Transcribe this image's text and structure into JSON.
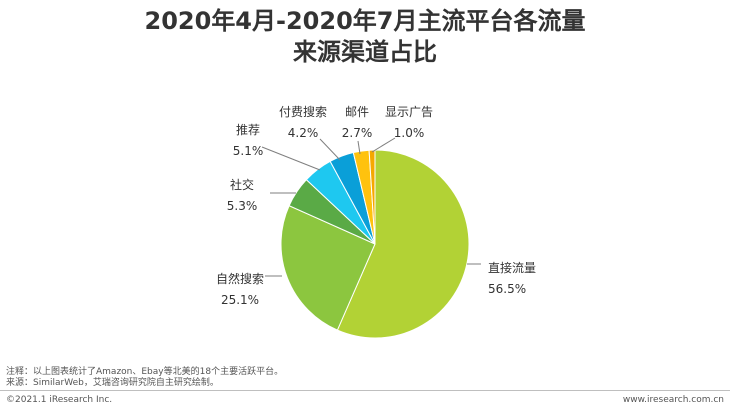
{
  "page": {
    "title_line1": "2020年4月-2020年7月主流平台各流量",
    "title_line2": "来源渠道占比",
    "note1": "注释：以上图表统计了Amazon、Ebay等北美的18个主要活跃平台。",
    "note2": "来源：SimilarWeb，艾瑞咨询研究院自主研究绘制。",
    "footer_left": "©2021.1 iResearch Inc.",
    "footer_right": "www.iresearch.com.cn"
  },
  "chart_data": {
    "type": "pie",
    "title": "2020年4月-2020年7月主流平台各流量来源渠道占比",
    "slices": [
      {
        "label": "直接流量",
        "value": 56.5,
        "value_label": "56.5%",
        "color": "#b2d235"
      },
      {
        "label": "自然搜索",
        "value": 25.1,
        "value_label": "25.1%",
        "color": "#8cc63f"
      },
      {
        "label": "社交",
        "value": 5.3,
        "value_label": "5.3%",
        "color": "#5aaa46"
      },
      {
        "label": "推荐",
        "value": 5.1,
        "value_label": "5.1%",
        "color": "#1ec8f0"
      },
      {
        "label": "付费搜索",
        "value": 4.2,
        "value_label": "4.2%",
        "color": "#0a9fd8"
      },
      {
        "label": "邮件",
        "value": 2.7,
        "value_label": "2.7%",
        "color": "#ffc20e"
      },
      {
        "label": "显示广告",
        "value": 1.0,
        "value_label": "1.0%",
        "color": "#f5a800"
      }
    ],
    "start_angle_deg": 0,
    "direction": "clockwise",
    "legend": "none",
    "data_labels": "outside-with-leader-lines"
  }
}
